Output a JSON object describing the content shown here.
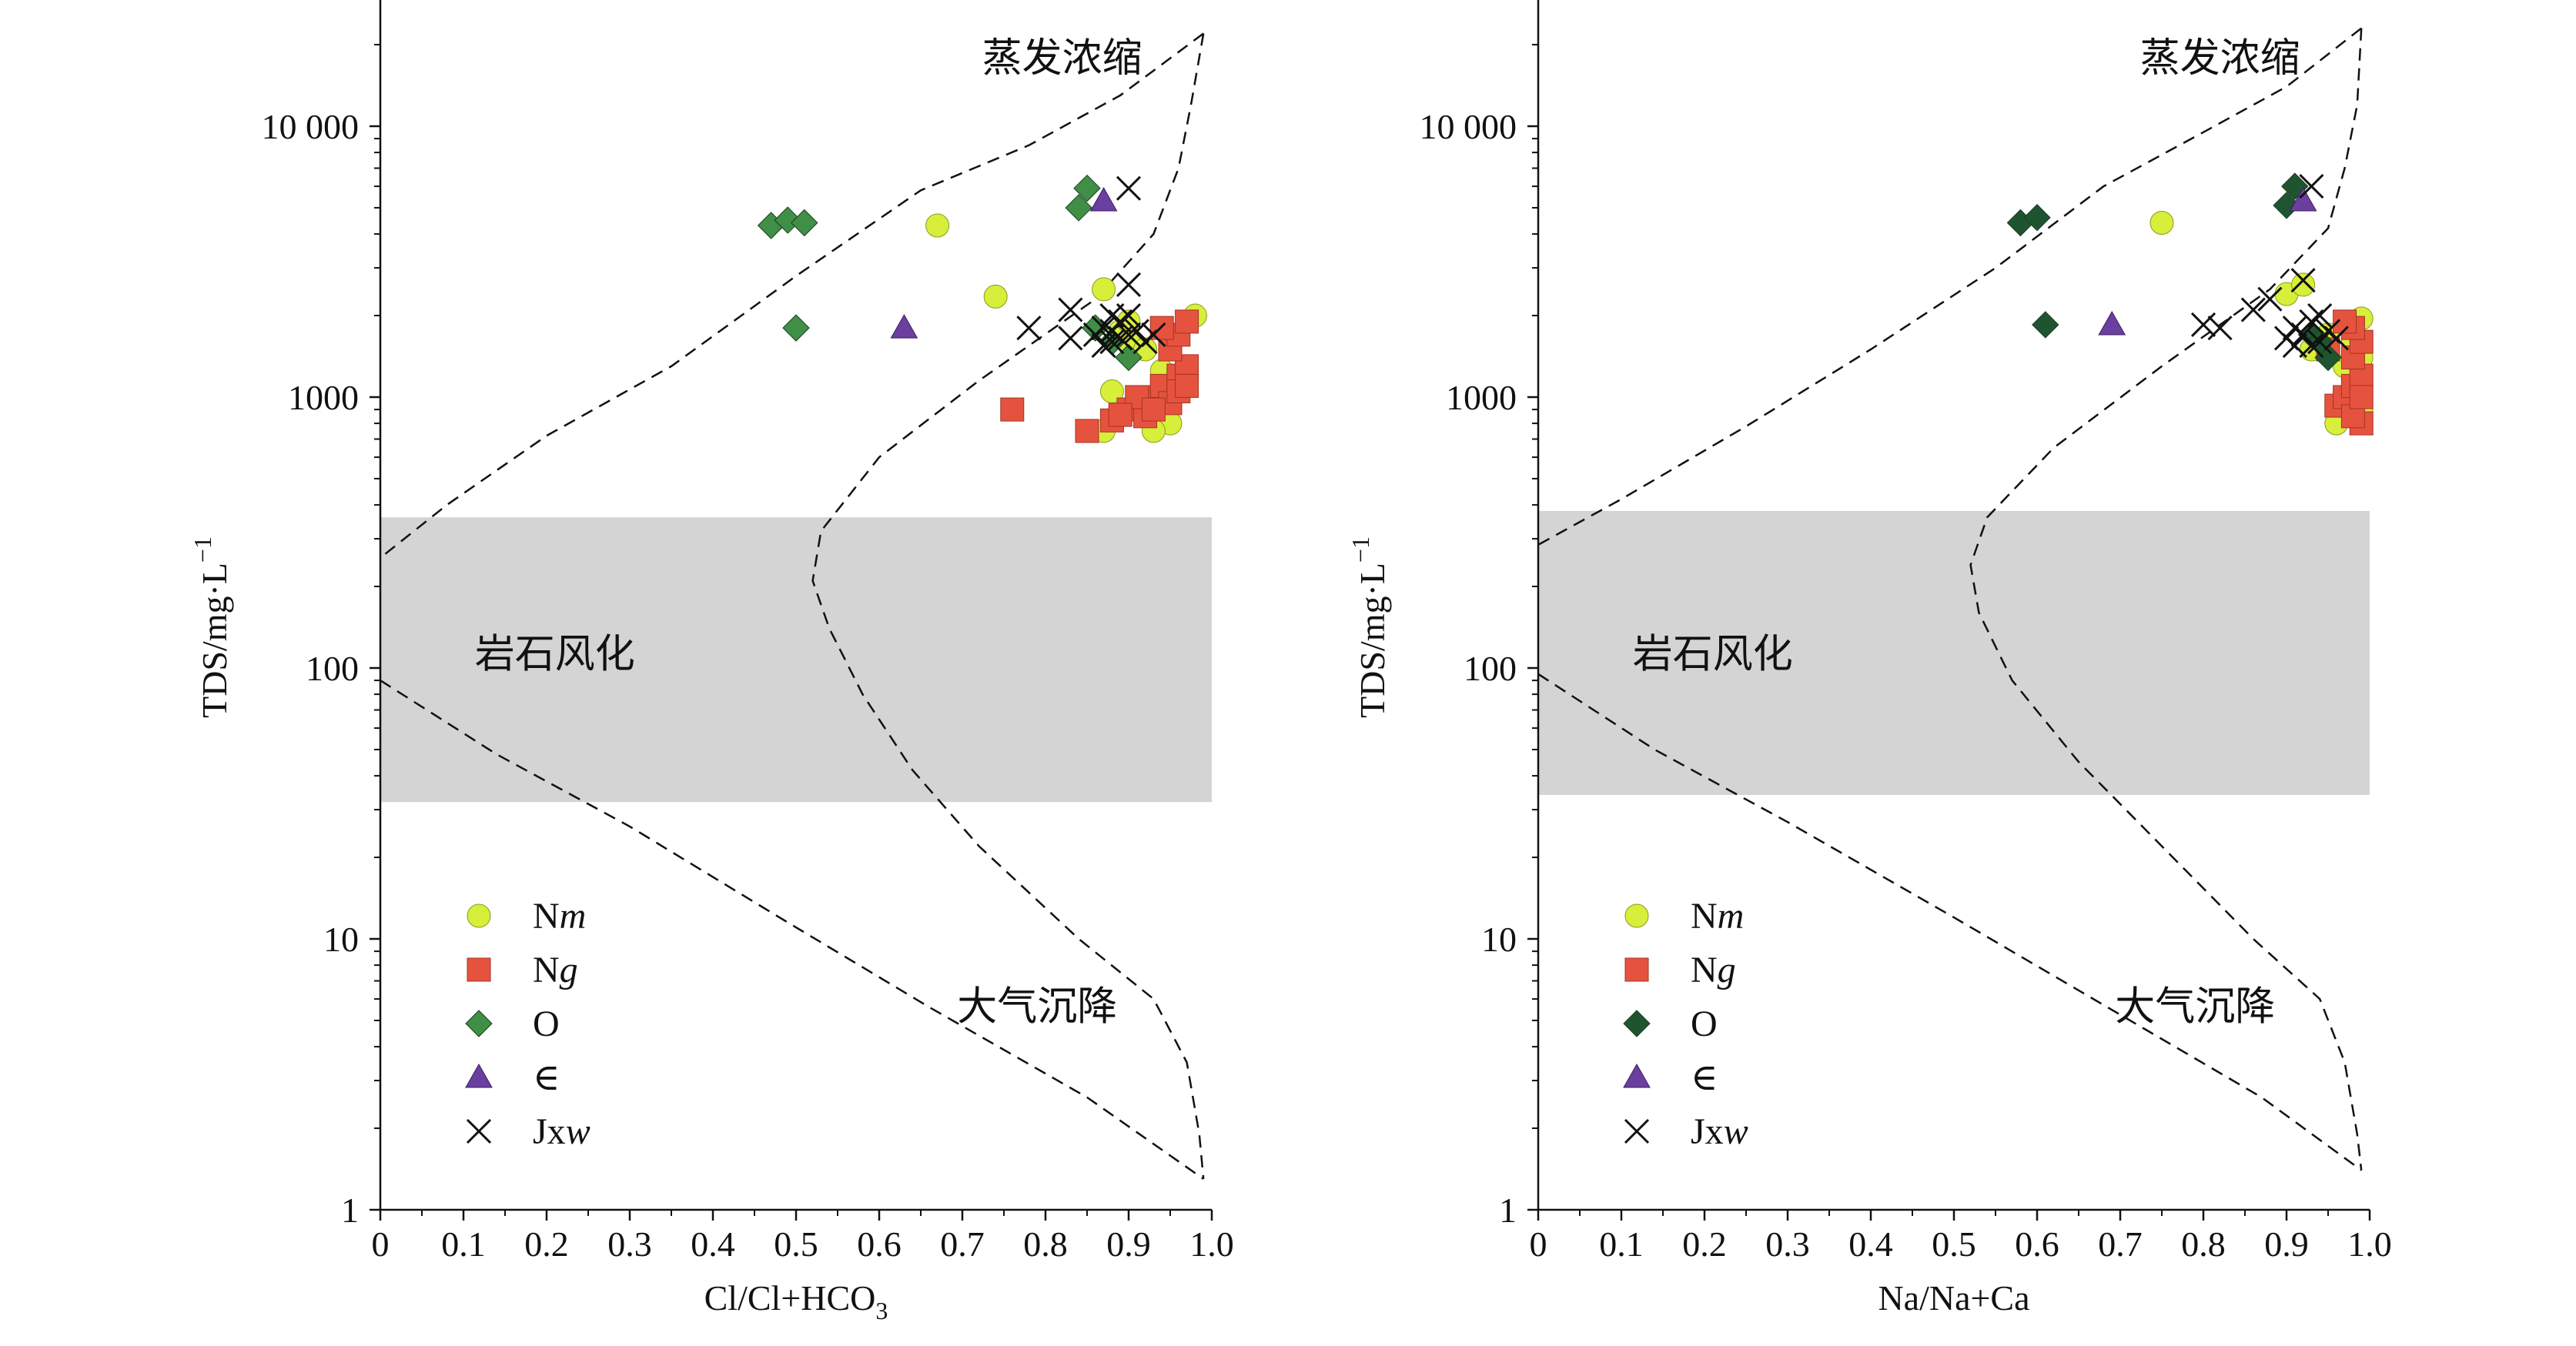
{
  "y_tick_labels": [
    "1",
    "10",
    "100",
    "1000",
    "10 000"
  ],
  "legend_items": [
    {
      "key": "Nm",
      "base": "N",
      "italic": "m",
      "marker": "circle"
    },
    {
      "key": "Ng",
      "base": "N",
      "italic": "g",
      "marker": "square"
    },
    {
      "key": "O",
      "base": "O",
      "italic": "",
      "marker": "diamond"
    },
    {
      "key": "Cam",
      "base": "∈",
      "italic": "",
      "marker": "triangle"
    },
    {
      "key": "Jxw",
      "base": "Jx",
      "italic": "w",
      "marker": "cross"
    }
  ],
  "chart_data": [
    {
      "type": "scatter",
      "xlabel": "Cl/Cl+HCO3",
      "ylabel": "TDS/mg·L−1",
      "x_ticks": [
        "0",
        "0.1",
        "0.2",
        "0.3",
        "0.4",
        "0.5",
        "0.6",
        "0.7",
        "0.8",
        "0.9",
        "1.0"
      ],
      "xlim": [
        0,
        1.0
      ],
      "ylim": [
        1,
        30000
      ],
      "yscale": "log",
      "region_labels": {
        "evaporation": "蒸发浓缩",
        "weathering": "岩石风化",
        "precipitation": "大气沉降"
      },
      "weathering_band": {
        "x": [
          0,
          1.0
        ],
        "y": [
          32,
          360
        ]
      },
      "colors": {
        "Nm": "#d7ee3a",
        "Ng": "#e5533f",
        "O": "#3f8f47",
        "Cam": "#6b3fa0",
        "Jxw": "#111111",
        "band": "#d4d4d4"
      },
      "boundary_outer": [
        [
          0.99,
          22000
        ],
        [
          0.89,
          13000
        ],
        [
          0.78,
          8500
        ],
        [
          0.65,
          5800
        ],
        [
          0.5,
          2800
        ],
        [
          0.35,
          1300
        ],
        [
          0.2,
          720
        ],
        [
          0.08,
          400
        ],
        [
          0,
          255
        ]
      ],
      "boundary_inner": [
        [
          0.99,
          22000
        ],
        [
          0.975,
          12000
        ],
        [
          0.96,
          7000
        ],
        [
          0.93,
          4000
        ],
        [
          0.86,
          2300
        ],
        [
          0.72,
          1150
        ],
        [
          0.6,
          600
        ],
        [
          0.53,
          320
        ],
        [
          0.52,
          210
        ],
        [
          0.54,
          140
        ],
        [
          0.58,
          80
        ],
        [
          0.64,
          42
        ],
        [
          0.72,
          22
        ],
        [
          0.84,
          10
        ],
        [
          0.93,
          6
        ],
        [
          0.97,
          3.5
        ],
        [
          0.985,
          1.9
        ],
        [
          0.99,
          1.3
        ]
      ],
      "boundary_lower": [
        [
          0,
          90
        ],
        [
          0.14,
          48
        ],
        [
          0.3,
          26
        ],
        [
          0.48,
          12
        ],
        [
          0.66,
          5.6
        ],
        [
          0.85,
          2.6
        ],
        [
          0.99,
          1.3
        ]
      ],
      "series": [
        {
          "name": "Nm",
          "points": [
            [
              0.67,
              4300
            ],
            [
              0.74,
              2350
            ],
            [
              0.87,
              2500
            ],
            [
              0.89,
              1750
            ],
            [
              0.9,
              1600
            ],
            [
              0.92,
              1500
            ],
            [
              0.88,
              1050
            ],
            [
              0.92,
              900
            ],
            [
              0.95,
              800
            ],
            [
              0.87,
              750
            ],
            [
              0.93,
              750
            ],
            [
              0.98,
              2000
            ],
            [
              0.9,
              1900
            ],
            [
              0.94,
              1250
            ]
          ]
        },
        {
          "name": "Ng",
          "points": [
            [
              0.76,
              900
            ],
            [
              0.85,
              750
            ],
            [
              0.88,
              820
            ],
            [
              0.9,
              900
            ],
            [
              0.92,
              850
            ],
            [
              0.93,
              1000
            ],
            [
              0.94,
              1100
            ],
            [
              0.95,
              950
            ],
            [
              0.96,
              1200
            ],
            [
              0.97,
              1300
            ],
            [
              0.95,
              1500
            ],
            [
              0.96,
              1700
            ],
            [
              0.97,
              1900
            ],
            [
              0.94,
              1800
            ],
            [
              0.91,
              1000
            ],
            [
              0.89,
              860
            ],
            [
              0.96,
              1050
            ],
            [
              0.93,
              900
            ],
            [
              0.97,
              1100
            ]
          ]
        },
        {
          "name": "O",
          "points": [
            [
              0.47,
              4300
            ],
            [
              0.49,
              4500
            ],
            [
              0.51,
              4400
            ],
            [
              0.5,
              1800
            ],
            [
              0.85,
              5900
            ],
            [
              0.84,
              5000
            ],
            [
              0.86,
              1800
            ],
            [
              0.9,
              1400
            ],
            [
              0.88,
              1600
            ]
          ]
        },
        {
          "name": "Cam",
          "points": [
            [
              0.63,
              1800
            ],
            [
              0.87,
              5300
            ]
          ]
        },
        {
          "name": "Jxw",
          "points": [
            [
              0.9,
              5900
            ],
            [
              0.83,
              2100
            ],
            [
              0.78,
              1800
            ],
            [
              0.83,
              1650
            ],
            [
              0.86,
              1700
            ],
            [
              0.87,
              1800
            ],
            [
              0.88,
              1600
            ],
            [
              0.89,
              1900
            ],
            [
              0.9,
              2000
            ],
            [
              0.88,
              1750
            ],
            [
              0.89,
              1650
            ],
            [
              0.9,
              1700
            ],
            [
              0.91,
              1750
            ],
            [
              0.92,
              1600
            ],
            [
              0.93,
              1700
            ],
            [
              0.9,
              2600
            ],
            [
              0.87,
              1550
            ],
            [
              0.88,
              2000
            ]
          ]
        }
      ]
    },
    {
      "type": "scatter",
      "xlabel": "Na/Na+Ca",
      "ylabel": "TDS/mg·L−1",
      "x_ticks": [
        "0",
        "0.1",
        "0.2",
        "0.3",
        "0.4",
        "0.5",
        "0.6",
        "0.7",
        "0.8",
        "0.9",
        "1.0"
      ],
      "xlim": [
        0,
        1.0
      ],
      "ylim": [
        1,
        30000
      ],
      "yscale": "log",
      "region_labels": {
        "evaporation": "蒸发浓缩",
        "weathering": "岩石风化",
        "precipitation": "大气沉降"
      },
      "weathering_band": {
        "x": [
          0,
          1.0
        ],
        "y": [
          34,
          380
        ]
      },
      "colors": {
        "Nm": "#d7ee3a",
        "Ng": "#e5533f",
        "O": "#1e5530",
        "Cam": "#6b3fa0",
        "Jxw": "#111111",
        "band": "#d4d4d4"
      },
      "boundary_outer": [
        [
          0.99,
          23000
        ],
        [
          0.9,
          14000
        ],
        [
          0.8,
          9500
        ],
        [
          0.68,
          6000
        ],
        [
          0.55,
          3000
        ],
        [
          0.4,
          1500
        ],
        [
          0.25,
          780
        ],
        [
          0.1,
          420
        ],
        [
          0,
          285
        ]
      ],
      "boundary_inner": [
        [
          0.99,
          23000
        ],
        [
          0.985,
          12000
        ],
        [
          0.97,
          7000
        ],
        [
          0.95,
          4200
        ],
        [
          0.88,
          2500
        ],
        [
          0.75,
          1300
        ],
        [
          0.62,
          650
        ],
        [
          0.54,
          360
        ],
        [
          0.52,
          240
        ],
        [
          0.53,
          160
        ],
        [
          0.57,
          90
        ],
        [
          0.65,
          45
        ],
        [
          0.75,
          22
        ],
        [
          0.86,
          10
        ],
        [
          0.94,
          6
        ],
        [
          0.97,
          3.5
        ],
        [
          0.985,
          1.9
        ],
        [
          0.99,
          1.4
        ]
      ],
      "boundary_lower": [
        [
          0,
          95
        ],
        [
          0.14,
          50
        ],
        [
          0.3,
          27
        ],
        [
          0.5,
          12
        ],
        [
          0.68,
          5.7
        ],
        [
          0.87,
          2.6
        ],
        [
          0.99,
          1.4
        ]
      ],
      "series": [
        {
          "name": "Nm",
          "points": [
            [
              0.75,
              4400
            ],
            [
              0.9,
              2400
            ],
            [
              0.92,
              2600
            ],
            [
              0.95,
              1700
            ],
            [
              0.98,
              1600
            ],
            [
              0.99,
              1400
            ],
            [
              0.97,
              1300
            ],
            [
              0.98,
              1050
            ],
            [
              0.99,
              900
            ],
            [
              0.96,
              800
            ],
            [
              0.99,
              1950
            ],
            [
              0.93,
              1500
            ]
          ]
        },
        {
          "name": "Ng",
          "points": [
            [
              0.96,
              930
            ],
            [
              0.97,
              1000
            ],
            [
              0.98,
              1100
            ],
            [
              0.99,
              1200
            ],
            [
              0.98,
              1400
            ],
            [
              0.99,
              1600
            ],
            [
              0.98,
              1800
            ],
            [
              0.97,
              1900
            ],
            [
              0.99,
              800
            ],
            [
              0.98,
              850
            ],
            [
              0.99,
              1000
            ],
            [
              0.95,
              1500
            ]
          ]
        },
        {
          "name": "O",
          "points": [
            [
              0.58,
              4400
            ],
            [
              0.6,
              4600
            ],
            [
              0.61,
              1850
            ],
            [
              0.91,
              6000
            ],
            [
              0.9,
              5100
            ],
            [
              0.95,
              1400
            ],
            [
              0.93,
              1700
            ],
            [
              0.94,
              1600
            ]
          ]
        },
        {
          "name": "Cam",
          "points": [
            [
              0.69,
              1850
            ],
            [
              0.92,
              5300
            ]
          ]
        },
        {
          "name": "Jxw",
          "points": [
            [
              0.93,
              6000
            ],
            [
              0.8,
              1850
            ],
            [
              0.82,
              1800
            ],
            [
              0.86,
              2100
            ],
            [
              0.88,
              2300
            ],
            [
              0.9,
              1650
            ],
            [
              0.91,
              1800
            ],
            [
              0.92,
              1700
            ],
            [
              0.93,
              1900
            ],
            [
              0.94,
              1600
            ],
            [
              0.92,
              2700
            ],
            [
              0.94,
              2000
            ],
            [
              0.95,
              1750
            ],
            [
              0.96,
              1650
            ],
            [
              0.91,
              1550
            ],
            [
              0.93,
              1550
            ]
          ]
        }
      ]
    }
  ]
}
